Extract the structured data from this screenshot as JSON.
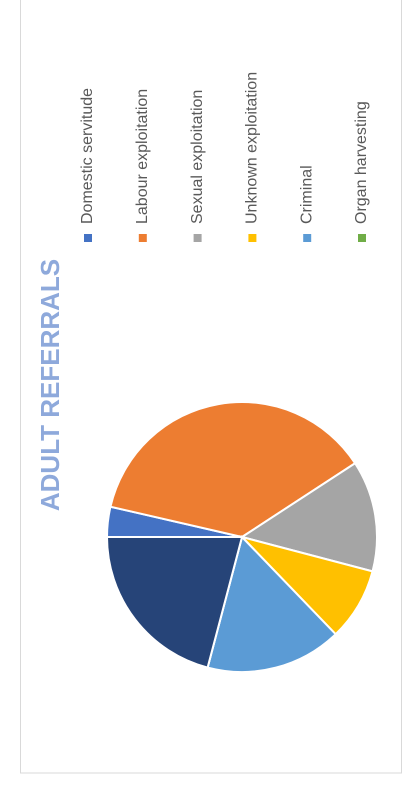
{
  "chart_data": {
    "type": "pie",
    "title": "ADULT REFERRALS",
    "categories": [
      "Domestic servitude",
      "Labour exploitation",
      "Sexual exploitation",
      "Unknown exploitation",
      "Criminal",
      "Organ harvesting",
      null
    ],
    "values": [
      3.6,
      37.2,
      13.3,
      8.7,
      16.3,
      0,
      20.9
    ],
    "colors": [
      "#4472c4",
      "#ed7d31",
      "#a5a5a5",
      "#ffc000",
      "#5b9bd5",
      "#70ad47",
      "#264478"
    ],
    "legend": "bottom"
  }
}
